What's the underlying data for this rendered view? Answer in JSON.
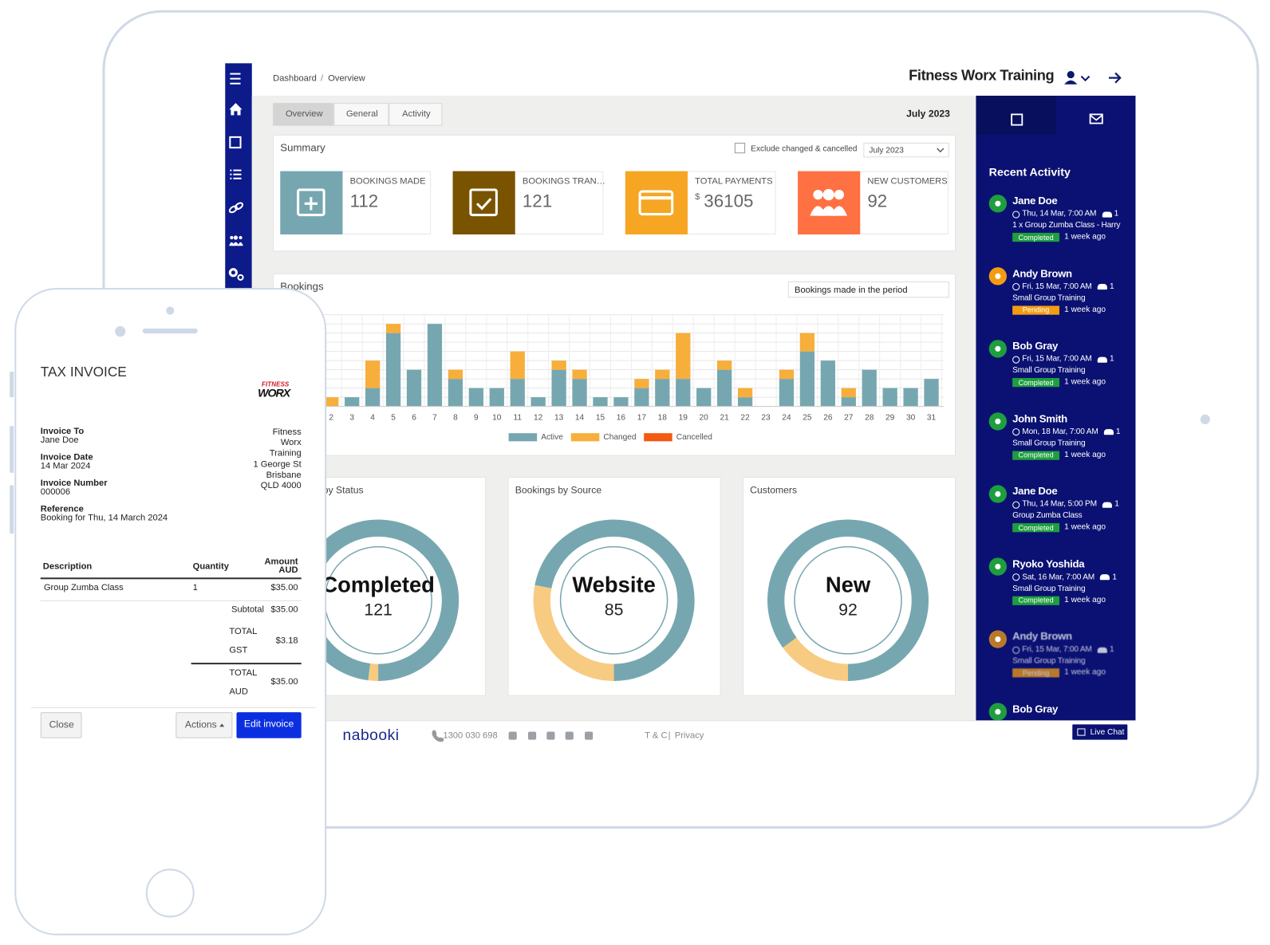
{
  "header": {
    "breadcrumb": [
      "Dashboard",
      "Overview"
    ],
    "breadcrumb_separator": "/",
    "title": "Fitness Worx Training"
  },
  "tabs": [
    "Overview",
    "General",
    "Activity"
  ],
  "period": "July 2023",
  "summary": {
    "title": "Summary",
    "exclude_label": "Exclude changed & cancelled",
    "select": "July 2023",
    "cards": [
      {
        "label": "BOOKINGS MADE",
        "value": 112,
        "color": "#76a7b0"
      },
      {
        "label": "BOOKINGS TRAN…",
        "value": 121,
        "color": "#7a5300"
      },
      {
        "label": "TOTAL PAYMENTS",
        "currency": "$",
        "value": 36105,
        "color": "#f6a623"
      },
      {
        "label": "NEW CUSTOMERS",
        "value": 92,
        "color": "#ff7043"
      }
    ]
  },
  "bookings_chart": {
    "type": "bar",
    "stacked": true,
    "title": "Bookings",
    "select": "Bookings made in the period",
    "categories": [
      "2",
      "3",
      "4",
      "5",
      "6",
      "7",
      "8",
      "9",
      "10",
      "11",
      "12",
      "13",
      "14",
      "15",
      "16",
      "17",
      "18",
      "19",
      "20",
      "21",
      "22",
      "23",
      "24",
      "25",
      "26",
      "27",
      "28",
      "29",
      "30",
      "31"
    ],
    "ylim": [
      0,
      10
    ],
    "ygrid": [
      0,
      1,
      2,
      3,
      4,
      5,
      6,
      7,
      8,
      9,
      10
    ],
    "grid": true,
    "series": [
      {
        "name": "Active",
        "color": "#76a7b0",
        "values": [
          0,
          1,
          2,
          8,
          4,
          9,
          3,
          2,
          2,
          3,
          1,
          4,
          3,
          1,
          1,
          2,
          3,
          3,
          2,
          4,
          1,
          0,
          3,
          6,
          5,
          1,
          4,
          2,
          2,
          3
        ]
      },
      {
        "name": "Changed",
        "color": "#f7ae3b",
        "values": [
          1,
          0,
          3,
          1,
          0,
          0,
          1,
          0,
          0,
          3,
          0,
          1,
          1,
          0,
          0,
          1,
          1,
          5,
          0,
          1,
          1,
          0,
          1,
          2,
          0,
          1,
          0,
          0,
          0,
          0
        ]
      },
      {
        "name": "Cancelled",
        "color": "#f35a12",
        "values": [
          0,
          0,
          0,
          0,
          0,
          0,
          0,
          0,
          0,
          0,
          0,
          0,
          0,
          0,
          0,
          0,
          0,
          0,
          0,
          0,
          0,
          0,
          0,
          0,
          0,
          0,
          0,
          0,
          0,
          0
        ]
      }
    ]
  },
  "donuts": [
    {
      "type": "pie",
      "title": "Bookings by Status",
      "center_label": "Completed",
      "center_value": 121,
      "values": [
        98,
        2
      ],
      "colors": [
        "#76a7b0",
        "#f8cb82"
      ]
    },
    {
      "type": "pie",
      "title": "Bookings by Source",
      "center_label": "Website",
      "center_value": 85,
      "values": [
        72,
        28
      ],
      "colors": [
        "#76a7b0",
        "#f8cb82"
      ]
    },
    {
      "type": "pie",
      "title": "Customers",
      "center_label": "New",
      "center_value": 92,
      "values": [
        85,
        15
      ],
      "colors": [
        "#76a7b0",
        "#f8cb82"
      ]
    }
  ],
  "activity": {
    "title": "Recent Activity",
    "items": [
      {
        "name": "Jane Doe",
        "time": "Thu, 14 Mar, 7:00 AM",
        "guests": "1",
        "description": "1 x Group Zumba Class - Harry",
        "status": "Completed",
        "color": "#1e9e3e",
        "ago": "1 week ago"
      },
      {
        "name": "Andy Brown",
        "time": "Fri, 15 Mar, 7:00 AM",
        "guests": "1",
        "description": "Small Group Training",
        "status": "Pending",
        "color": "#f39c12",
        "ago": "1 week ago"
      },
      {
        "name": "Bob Gray",
        "time": "Fri, 15 Mar, 7:00 AM",
        "guests": "1",
        "description": "Small Group Training",
        "status": "Completed",
        "color": "#1e9e3e",
        "ago": "1 week ago"
      },
      {
        "name": "John Smith",
        "time": "Mon, 18 Mar, 7:00 AM",
        "guests": "1",
        "description": "Small Group Training",
        "status": "Completed",
        "color": "#1e9e3e",
        "ago": "1 week ago"
      },
      {
        "name": "Jane Doe",
        "time": "Thu, 14 Mar, 5:00 PM",
        "guests": "1",
        "description": "Group Zumba Class",
        "status": "Completed",
        "color": "#1e9e3e",
        "ago": "1 week ago"
      },
      {
        "name": "Ryoko Yoshida",
        "time": "Sat, 16 Mar, 7:00 AM",
        "guests": "1",
        "description": "Small Group Training",
        "status": "Completed",
        "color": "#1e9e3e",
        "ago": "1 week ago"
      },
      {
        "name": "Andy Brown",
        "time": "Fri, 15 Mar, 7:00 AM",
        "guests": "1",
        "description": "Small Group Training",
        "status": "Pending",
        "color": "#f39c12",
        "ago": "1 week ago"
      },
      {
        "name": "Bob Gray",
        "color": "#1e9e3e"
      }
    ]
  },
  "footer": {
    "logo": "nabooki",
    "phone": "1300 030 698",
    "links": [
      "T & C",
      "Privacy"
    ],
    "link_separator": "|",
    "live_chat": "Live Chat"
  },
  "invoice": {
    "title": "TAX INVOICE",
    "logo": [
      "FITNESS",
      "WORX"
    ],
    "fields": [
      {
        "label": "Invoice To",
        "value": "Jane Doe"
      },
      {
        "label": "Invoice Date",
        "value": "14 Mar 2024"
      },
      {
        "label": "Invoice Number",
        "value": "000006"
      },
      {
        "label": "Reference",
        "value": "Booking for Thu, 14 March 2024"
      }
    ],
    "address": [
      "Fitness",
      "Worx",
      "Training",
      "1 George St",
      "Brisbane",
      "QLD 4000"
    ],
    "columns": [
      "Description",
      "Quantity"
    ],
    "amount_header": [
      "Amount",
      "AUD"
    ],
    "rows": [
      [
        "Group Zumba Class",
        "1",
        "$35.00"
      ]
    ],
    "subtotal": {
      "label": "Subtotal",
      "value": "$35.00"
    },
    "gst": {
      "label": [
        "TOTAL",
        "GST"
      ],
      "value": "$3.18"
    },
    "total": {
      "label": [
        "TOTAL",
        "AUD"
      ],
      "value": "$35.00"
    },
    "buttons": [
      "Close",
      "Actions",
      "Edit invoice"
    ]
  }
}
